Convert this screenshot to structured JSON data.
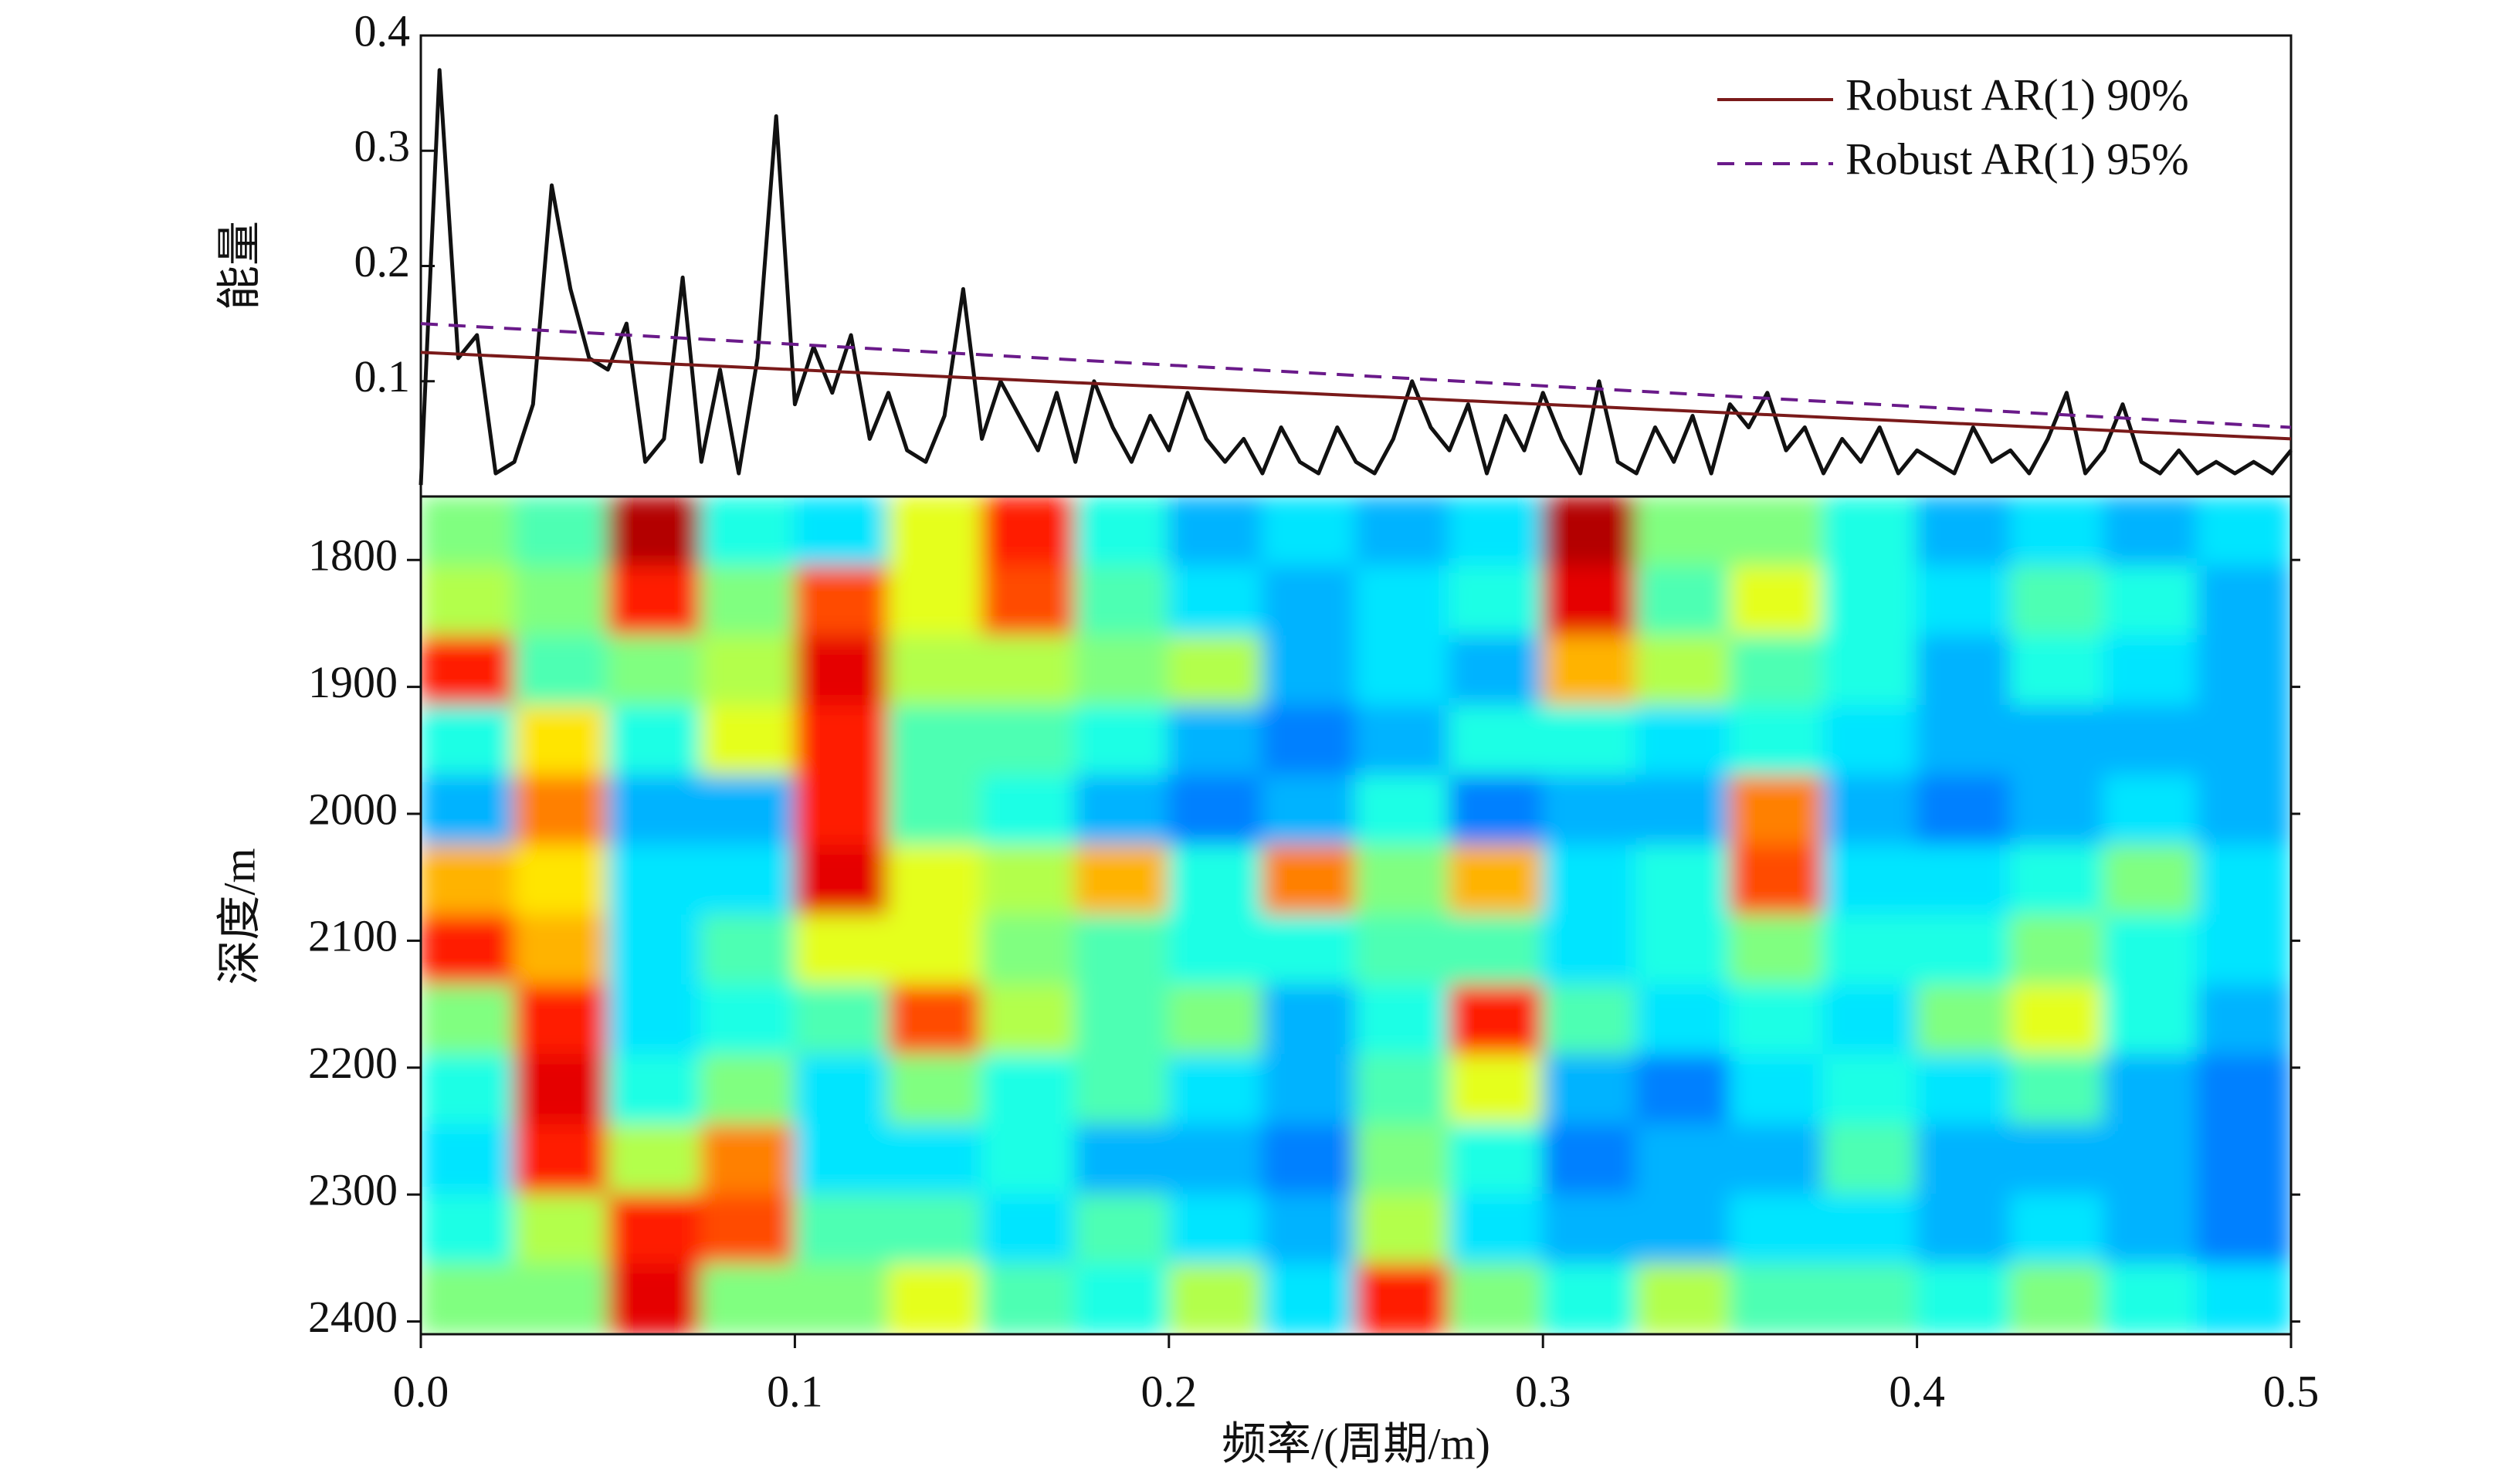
{
  "chart_data": [
    {
      "type": "line",
      "ylabel": "能量",
      "xlim": [
        0,
        0.5
      ],
      "ylim": [
        0,
        0.4
      ],
      "yticks": [
        0.1,
        0.2,
        0.3,
        0.4
      ],
      "legend": "upper right",
      "series": [
        {
          "color": "#111111",
          "x": [
            0,
            0.005,
            0.01,
            0.015,
            0.02,
            0.025,
            0.03,
            0.035,
            0.04,
            0.045,
            0.05,
            0.055,
            0.06,
            0.065,
            0.07,
            0.075,
            0.08,
            0.085,
            0.09,
            0.095,
            0.1,
            0.105,
            0.11,
            0.115,
            0.12,
            0.125,
            0.13,
            0.135,
            0.14,
            0.145,
            0.15,
            0.155,
            0.16,
            0.165,
            0.17,
            0.175,
            0.18,
            0.185,
            0.19,
            0.195,
            0.2,
            0.205,
            0.21,
            0.215,
            0.22,
            0.225,
            0.23,
            0.235,
            0.24,
            0.245,
            0.25,
            0.255,
            0.26,
            0.265,
            0.27,
            0.275,
            0.28,
            0.285,
            0.29,
            0.295,
            0.3,
            0.305,
            0.31,
            0.315,
            0.32,
            0.325,
            0.33,
            0.335,
            0.34,
            0.345,
            0.35,
            0.355,
            0.36,
            0.365,
            0.37,
            0.375,
            0.38,
            0.385,
            0.39,
            0.395,
            0.4,
            0.405,
            0.41,
            0.415,
            0.42,
            0.425,
            0.43,
            0.435,
            0.44,
            0.445,
            0.45,
            0.455,
            0.46,
            0.465,
            0.47,
            0.475,
            0.48,
            0.485,
            0.49,
            0.495,
            0.5
          ],
          "values": [
            0.01,
            0.37,
            0.12,
            0.14,
            0.02,
            0.03,
            0.08,
            0.27,
            0.18,
            0.12,
            0.11,
            0.15,
            0.03,
            0.05,
            0.19,
            0.03,
            0.11,
            0.02,
            0.12,
            0.33,
            0.08,
            0.13,
            0.09,
            0.14,
            0.05,
            0.09,
            0.04,
            0.03,
            0.07,
            0.18,
            0.05,
            0.1,
            0.07,
            0.04,
            0.09,
            0.03,
            0.1,
            0.06,
            0.03,
            0.07,
            0.04,
            0.09,
            0.05,
            0.03,
            0.05,
            0.02,
            0.06,
            0.03,
            0.02,
            0.06,
            0.03,
            0.02,
            0.05,
            0.1,
            0.06,
            0.04,
            0.08,
            0.02,
            0.07,
            0.04,
            0.09,
            0.05,
            0.02,
            0.1,
            0.03,
            0.02,
            0.06,
            0.03,
            0.07,
            0.02,
            0.08,
            0.06,
            0.09,
            0.04,
            0.06,
            0.02,
            0.05,
            0.03,
            0.06,
            0.02,
            0.04,
            0.03,
            0.02,
            0.06,
            0.03,
            0.04,
            0.02,
            0.05,
            0.09,
            0.02,
            0.04,
            0.08,
            0.03,
            0.02,
            0.04,
            0.02,
            0.03,
            0.02,
            0.03,
            0.02,
            0.04
          ]
        },
        {
          "name": "Robust AR(1) 90%",
          "color": "#7a1a1a",
          "dash": false,
          "x": [
            0,
            0.5
          ],
          "values": [
            0.125,
            0.05
          ]
        },
        {
          "name": "Robust AR(1) 95%",
          "color": "#6a1a8a",
          "dash": true,
          "x": [
            0,
            0.5
          ],
          "values": [
            0.15,
            0.06
          ]
        }
      ]
    },
    {
      "type": "heatmap",
      "xlabel": "频率/(周期/m)",
      "ylabel": "深度/m",
      "colormap": "jet",
      "xlim": [
        0,
        0.5
      ],
      "xticks": [
        {
          "value": 0,
          "label": "0.0"
        },
        0.1,
        0.2,
        0.3,
        0.4,
        0.5
      ],
      "ylim": [
        2410,
        1750
      ],
      "yticks": [
        1800,
        1900,
        2000,
        2100,
        2200,
        2300,
        2400
      ],
      "x": [
        0.0125,
        0.0375,
        0.0625,
        0.0875,
        0.1125,
        0.1375,
        0.1625,
        0.1875,
        0.2125,
        0.2375,
        0.2625,
        0.2875,
        0.3125,
        0.3375,
        0.3625,
        0.3875,
        0.4125,
        0.4375,
        0.4625,
        0.4875
      ],
      "y": [
        1777.5,
        1832.5,
        1887.5,
        1942.5,
        1997.5,
        2052.5,
        2107.5,
        2162.5,
        2217.5,
        2272.5,
        2327.5,
        2382.5
      ],
      "values": [
        [
          0.5,
          0.45,
          0.95,
          0.4,
          0.35,
          0.6,
          0.85,
          0.4,
          0.3,
          0.35,
          0.3,
          0.35,
          0.95,
          0.5,
          0.5,
          0.4,
          0.3,
          0.35,
          0.3,
          0.35
        ],
        [
          0.55,
          0.5,
          0.85,
          0.5,
          0.8,
          0.6,
          0.8,
          0.45,
          0.35,
          0.3,
          0.35,
          0.4,
          0.9,
          0.45,
          0.6,
          0.4,
          0.35,
          0.45,
          0.4,
          0.3
        ],
        [
          0.85,
          0.45,
          0.5,
          0.55,
          0.9,
          0.55,
          0.55,
          0.5,
          0.55,
          0.3,
          0.35,
          0.3,
          0.7,
          0.55,
          0.45,
          0.4,
          0.3,
          0.4,
          0.35,
          0.3
        ],
        [
          0.4,
          0.65,
          0.4,
          0.6,
          0.85,
          0.45,
          0.45,
          0.4,
          0.3,
          0.25,
          0.3,
          0.4,
          0.4,
          0.35,
          0.4,
          0.35,
          0.3,
          0.3,
          0.3,
          0.3
        ],
        [
          0.3,
          0.75,
          0.3,
          0.3,
          0.85,
          0.45,
          0.4,
          0.3,
          0.25,
          0.3,
          0.4,
          0.25,
          0.3,
          0.3,
          0.75,
          0.3,
          0.25,
          0.3,
          0.35,
          0.3
        ],
        [
          0.7,
          0.65,
          0.35,
          0.35,
          0.9,
          0.6,
          0.55,
          0.7,
          0.4,
          0.75,
          0.5,
          0.7,
          0.35,
          0.4,
          0.8,
          0.35,
          0.35,
          0.4,
          0.5,
          0.35
        ],
        [
          0.85,
          0.7,
          0.35,
          0.45,
          0.6,
          0.6,
          0.5,
          0.45,
          0.4,
          0.4,
          0.45,
          0.45,
          0.35,
          0.4,
          0.5,
          0.4,
          0.4,
          0.5,
          0.4,
          0.35
        ],
        [
          0.5,
          0.85,
          0.35,
          0.4,
          0.45,
          0.8,
          0.55,
          0.45,
          0.5,
          0.3,
          0.4,
          0.85,
          0.45,
          0.35,
          0.4,
          0.35,
          0.5,
          0.6,
          0.4,
          0.3
        ],
        [
          0.4,
          0.9,
          0.4,
          0.5,
          0.35,
          0.5,
          0.4,
          0.45,
          0.35,
          0.3,
          0.45,
          0.6,
          0.3,
          0.25,
          0.35,
          0.4,
          0.35,
          0.45,
          0.3,
          0.25
        ],
        [
          0.35,
          0.85,
          0.55,
          0.75,
          0.35,
          0.35,
          0.4,
          0.3,
          0.3,
          0.25,
          0.5,
          0.4,
          0.25,
          0.3,
          0.3,
          0.45,
          0.3,
          0.3,
          0.3,
          0.25
        ],
        [
          0.4,
          0.55,
          0.85,
          0.8,
          0.45,
          0.45,
          0.35,
          0.45,
          0.35,
          0.3,
          0.55,
          0.35,
          0.3,
          0.3,
          0.35,
          0.35,
          0.3,
          0.35,
          0.3,
          0.25
        ],
        [
          0.5,
          0.5,
          0.9,
          0.5,
          0.5,
          0.6,
          0.45,
          0.4,
          0.55,
          0.35,
          0.85,
          0.5,
          0.4,
          0.55,
          0.45,
          0.45,
          0.4,
          0.5,
          0.4,
          0.35
        ]
      ]
    }
  ]
}
